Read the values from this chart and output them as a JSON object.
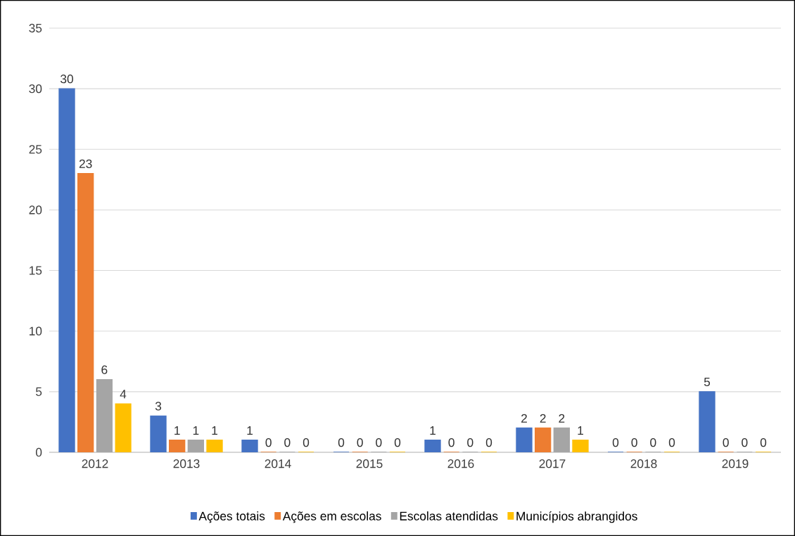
{
  "chart_data": {
    "type": "bar",
    "categories": [
      "2012",
      "2013",
      "2014",
      "2015",
      "2016",
      "2017",
      "2018",
      "2019"
    ],
    "series": [
      {
        "name": "Ações totais",
        "color": "#4472c4",
        "values": [
          30,
          3,
          1,
          0,
          1,
          2,
          0,
          5
        ]
      },
      {
        "name": "Ações em escolas",
        "color": "#ed7d31",
        "values": [
          23,
          1,
          0,
          0,
          0,
          2,
          0,
          0
        ]
      },
      {
        "name": "Escolas atendidas",
        "color": "#a5a5a5",
        "values": [
          6,
          1,
          0,
          0,
          0,
          2,
          0,
          0
        ]
      },
      {
        "name": "Municípios abrangidos",
        "color": "#ffc000",
        "values": [
          4,
          1,
          0,
          0,
          0,
          1,
          0,
          0
        ]
      }
    ],
    "ylim": [
      0,
      35
    ],
    "yticks": [
      0,
      5,
      10,
      15,
      20,
      25,
      30,
      35
    ],
    "grid": "y",
    "legend": "bottom",
    "data_labels": true
  }
}
